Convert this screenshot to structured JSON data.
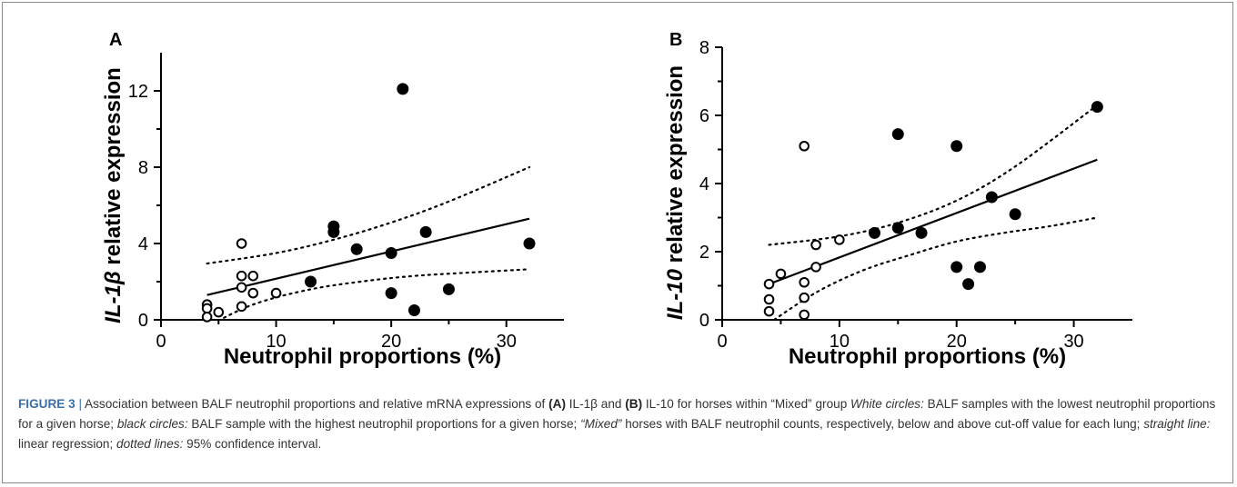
{
  "chart_data": [
    {
      "type": "scatter",
      "panel": "A",
      "ylabel_italic": "IL-1β",
      "ylabel_rest": "relative expression",
      "xlabel": "Neutrophil proportions (%)",
      "xlim": [
        0,
        35
      ],
      "ylim": [
        0,
        14
      ],
      "xticks": [
        0,
        10,
        20,
        30
      ],
      "yticks": [
        0,
        4,
        8,
        12
      ],
      "series": [
        {
          "name": "White circles",
          "marker": "open",
          "points": [
            [
              4,
              0.8
            ],
            [
              4,
              0.6
            ],
            [
              4,
              0.15
            ],
            [
              5,
              0.4
            ],
            [
              7,
              4.0
            ],
            [
              7,
              2.3
            ],
            [
              7,
              1.7
            ],
            [
              7,
              0.7
            ],
            [
              8,
              2.3
            ],
            [
              8,
              1.4
            ],
            [
              10,
              1.4
            ]
          ]
        },
        {
          "name": "Black circles",
          "marker": "filled",
          "points": [
            [
              13,
              2.0
            ],
            [
              15,
              4.9
            ],
            [
              15,
              4.6
            ],
            [
              17,
              3.7
            ],
            [
              20,
              3.5
            ],
            [
              20,
              1.4
            ],
            [
              21,
              12.1
            ],
            [
              22,
              0.5
            ],
            [
              23,
              4.6
            ],
            [
              25,
              1.6
            ],
            [
              32,
              4.0
            ]
          ]
        }
      ],
      "regression": {
        "x": [
          4,
          32
        ],
        "y": [
          1.3,
          5.3
        ]
      },
      "ci_upper": {
        "x": [
          4,
          10,
          15,
          20,
          25,
          32
        ],
        "y": [
          2.95,
          3.5,
          4.2,
          5.1,
          6.2,
          8.0
        ]
      },
      "ci_lower": {
        "x": [
          4,
          8,
          13,
          18,
          22,
          26,
          32
        ],
        "y": [
          -0.35,
          0.8,
          1.6,
          2.05,
          2.3,
          2.45,
          2.65
        ]
      }
    },
    {
      "type": "scatter",
      "panel": "B",
      "ylabel_italic": "IL-10",
      "ylabel_rest": "relative expression",
      "xlabel": "Neutrophil proportions (%)",
      "xlim": [
        0,
        35
      ],
      "ylim": [
        0,
        8
      ],
      "xticks": [
        0,
        10,
        20,
        30
      ],
      "yticks": [
        0,
        2,
        4,
        6,
        8
      ],
      "series": [
        {
          "name": "White circles",
          "marker": "open",
          "points": [
            [
              4,
              1.05
            ],
            [
              4,
              0.6
            ],
            [
              4,
              0.25
            ],
            [
              5,
              1.35
            ],
            [
              7,
              5.1
            ],
            [
              7,
              1.1
            ],
            [
              7,
              0.65
            ],
            [
              7,
              0.15
            ],
            [
              8,
              2.2
            ],
            [
              8,
              1.55
            ],
            [
              10,
              2.35
            ]
          ]
        },
        {
          "name": "Black circles",
          "marker": "filled",
          "points": [
            [
              13,
              2.55
            ],
            [
              15,
              5.45
            ],
            [
              15,
              2.7
            ],
            [
              17,
              2.55
            ],
            [
              20,
              5.1
            ],
            [
              20,
              1.55
            ],
            [
              21,
              1.05
            ],
            [
              22,
              1.55
            ],
            [
              23,
              3.6
            ],
            [
              25,
              3.1
            ],
            [
              32,
              6.25
            ]
          ]
        }
      ],
      "regression": {
        "x": [
          4,
          32
        ],
        "y": [
          1.05,
          4.7
        ]
      },
      "ci_upper": {
        "x": [
          4,
          10,
          15,
          20,
          25,
          32
        ],
        "y": [
          2.2,
          2.45,
          2.85,
          3.5,
          4.5,
          6.3
        ]
      },
      "ci_lower": {
        "x": [
          4,
          8,
          12,
          16,
          20,
          24,
          28,
          32
        ],
        "y": [
          -0.1,
          0.8,
          1.45,
          1.9,
          2.3,
          2.55,
          2.75,
          3.0
        ]
      }
    }
  ],
  "caption": {
    "figure_label": "FIGURE 3",
    "separator": "|",
    "part1": " Association between BALF neutrophil proportions and relative mRNA expressions of ",
    "a_label": "(A)",
    "part2": " IL-1β and ",
    "b_label": "(B)",
    "part3": " IL-10 for horses within “Mixed” group ",
    "white_label": "White circles:",
    "part4": " BALF samples with the lowest neutrophil proportions for a given horse; ",
    "black_label": "black circles:",
    "part5": " BALF sample with the highest neutrophil proportions for a given horse; ",
    "mixed_label": "“Mixed”",
    "part6": " horses with BALF neutrophil counts, respectively, below and above cut-off value for each lung; ",
    "straight_label": "straight line:",
    "part7": " linear regression; ",
    "dotted_label": "dotted lines:",
    "part8": " 95% confidence interval."
  }
}
